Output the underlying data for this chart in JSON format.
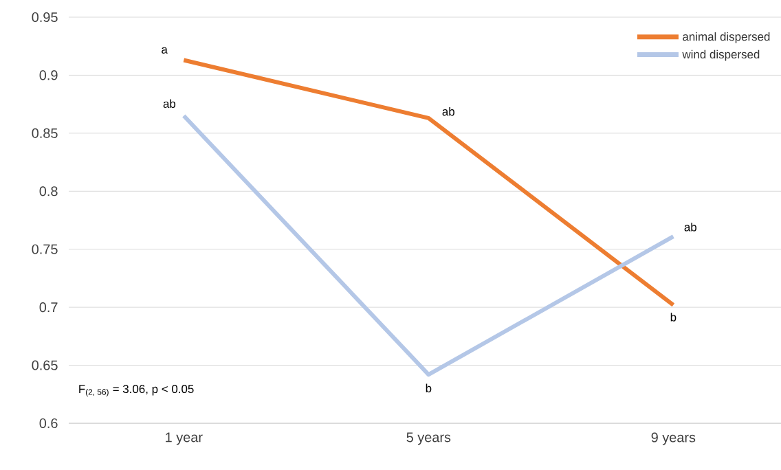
{
  "chart_data": {
    "type": "line",
    "categories": [
      "1 year",
      "5 years",
      "9 years"
    ],
    "series": [
      {
        "name": "animal dispersed",
        "color": "#ed7d31",
        "values": [
          0.913,
          0.863,
          0.702
        ]
      },
      {
        "name": "wind dispersed",
        "color": "#b4c7e7",
        "values": [
          0.865,
          0.642,
          0.761
        ]
      }
    ],
    "ylim": [
      0.6,
      0.95
    ],
    "yticks": [
      0.6,
      0.65,
      0.7,
      0.75,
      0.8,
      0.85,
      0.9,
      0.95
    ],
    "grid": "y",
    "legend": "top right",
    "marker": "none",
    "line_style": "solid",
    "annotations": [
      {
        "text": "a",
        "x": "1 year",
        "y": 0.913
      },
      {
        "text": "ab",
        "x": "1 year",
        "y": 0.865
      },
      {
        "text": "ab",
        "x": "5 years",
        "y": 0.863
      },
      {
        "text": "b",
        "x": "5 years",
        "y": 0.642
      },
      {
        "text": "ab",
        "x": "9 years",
        "y": 0.761
      },
      {
        "text": "b",
        "x": "9 years",
        "y": 0.702
      },
      "F$_{(2, 56)}$ = 3.06, p < 0.05"
    ]
  }
}
